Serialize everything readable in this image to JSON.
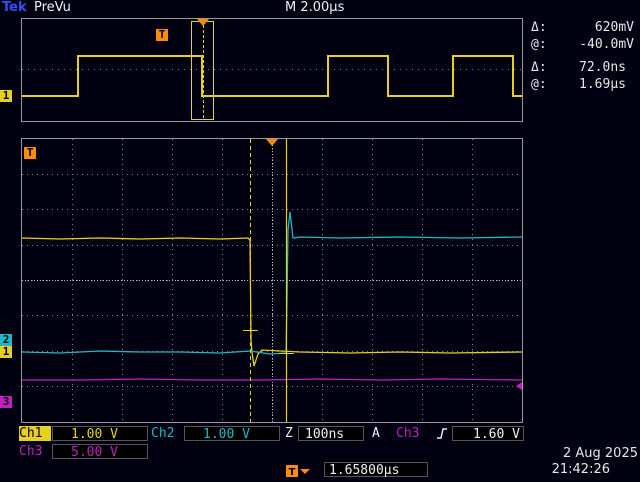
{
  "header": {
    "brand": "Tek",
    "mode": "PreVu",
    "timebase": "M 2.00µs"
  },
  "cursor_readout": {
    "delta_v_label": "Δ:",
    "delta_v_value": "620mV",
    "at_v_label": "@:",
    "at_v_value": "-40.0mV",
    "delta_t_label": "Δ:",
    "delta_t_value": "72.0ns",
    "at_t_label": "@:",
    "at_t_value": "1.69µs"
  },
  "markers": {
    "trigger": "T",
    "ch1": "1",
    "ch2": "2",
    "ch3": "3"
  },
  "channels": {
    "ch1_label": "Ch1",
    "ch1_scale": "1.00 V",
    "ch2_label": "Ch2",
    "ch2_scale": "1.00 V",
    "ch3_label": "Ch3",
    "ch3_scale": "5.00 V"
  },
  "horizontal": {
    "zoom_label": "Z",
    "zoom_scale": "100ns"
  },
  "trigger": {
    "label": "A",
    "source": "Ch3",
    "slope_icon": "rising-edge-icon",
    "level": "1.60 V",
    "position": "1.65800µs",
    "position_icon": "trigger-position-icon"
  },
  "datetime": {
    "date": "2 Aug 2025",
    "time": "21:42:26"
  },
  "colors": {
    "ch1": "#e6d21e",
    "ch2": "#20b8c8",
    "ch3": "#c020c0",
    "trigger": "#ff8c00",
    "grid": "#9a9a9a",
    "background": "#000010"
  }
}
